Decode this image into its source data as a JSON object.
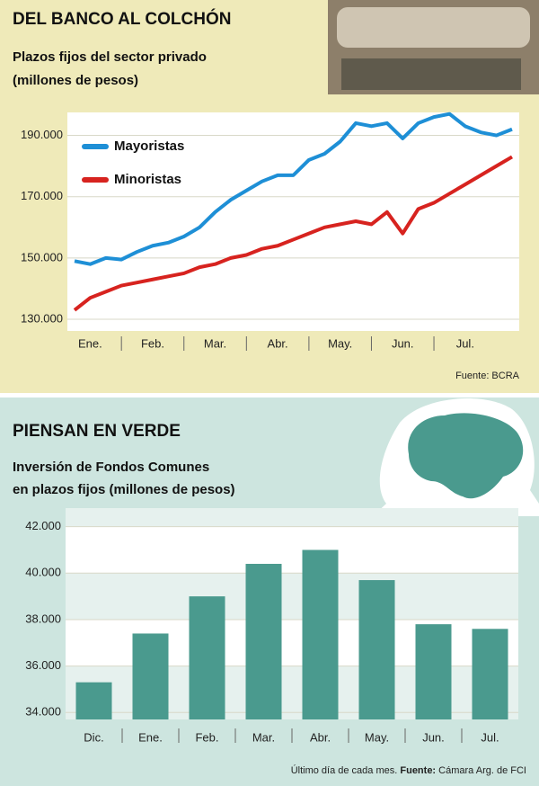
{
  "chart_data": [
    {
      "type": "line",
      "title": "DEL BANCO AL COLCHÓN",
      "subtitle": [
        "Plazos fijos del sector privado",
        "(millones de pesos)"
      ],
      "source": "Fuente: BCRA",
      "categories": [
        null,
        "Ene.",
        null,
        null,
        null,
        "Feb.",
        null,
        null,
        null,
        "Mar.",
        null,
        null,
        null,
        "Abr.",
        null,
        null,
        null,
        "May.",
        null,
        null,
        null,
        "Jun.",
        null,
        null,
        null,
        "Jul.",
        null,
        null,
        null
      ],
      "series": [
        {
          "name": "Mayoristas",
          "color": "#1e8fd6",
          "values": [
            149000,
            148000,
            150000,
            149500,
            152000,
            154000,
            155000,
            157000,
            160000,
            165000,
            169000,
            172000,
            175000,
            177000,
            177000,
            182000,
            184000,
            188000,
            194000,
            193000,
            194000,
            189000,
            194000,
            196000,
            197000,
            193000,
            191000,
            190000,
            192000
          ]
        },
        {
          "name": "Minoristas",
          "color": "#d7231f",
          "values": [
            133000,
            137000,
            139000,
            141000,
            142000,
            143000,
            144000,
            145000,
            147000,
            148000,
            150000,
            151000,
            153000,
            154000,
            156000,
            158000,
            160000,
            161000,
            162000,
            161000,
            165000,
            158000,
            166000,
            168000,
            171000,
            174000,
            177000,
            180000,
            183000
          ]
        }
      ],
      "ylim": [
        126200,
        197500
      ],
      "yticks": [
        {
          "value": 130000,
          "label": "130.000"
        },
        {
          "value": 150000,
          "label": "150.000"
        },
        {
          "value": 170000,
          "label": "170.000"
        },
        {
          "value": 190000,
          "label": "190.000"
        }
      ]
    },
    {
      "type": "bar",
      "title": "PIENSAN EN VERDE",
      "subtitle": [
        "Inversión de Fondos Comunes",
        "en plazos fijos (millones de pesos)"
      ],
      "note": "Último día de cada mes.",
      "source_label": "Fuente:",
      "source": "Cámara Arg. de FCI",
      "categories": [
        "Dic.",
        "Ene.",
        "Feb.",
        "Mar.",
        "Abr.",
        "May.",
        "Jun.",
        "Jul."
      ],
      "values": [
        35300,
        37400,
        39000,
        40400,
        41000,
        39700,
        37800,
        37600
      ],
      "color": "#4a9a8e",
      "ylim": [
        33700,
        42800
      ],
      "yticks": [
        {
          "value": 34000,
          "label": "34.000"
        },
        {
          "value": 36000,
          "label": "36.000"
        },
        {
          "value": 38000,
          "label": "38.000"
        },
        {
          "value": 40000,
          "label": "40.000"
        },
        {
          "value": 42000,
          "label": "42.000"
        }
      ]
    }
  ]
}
